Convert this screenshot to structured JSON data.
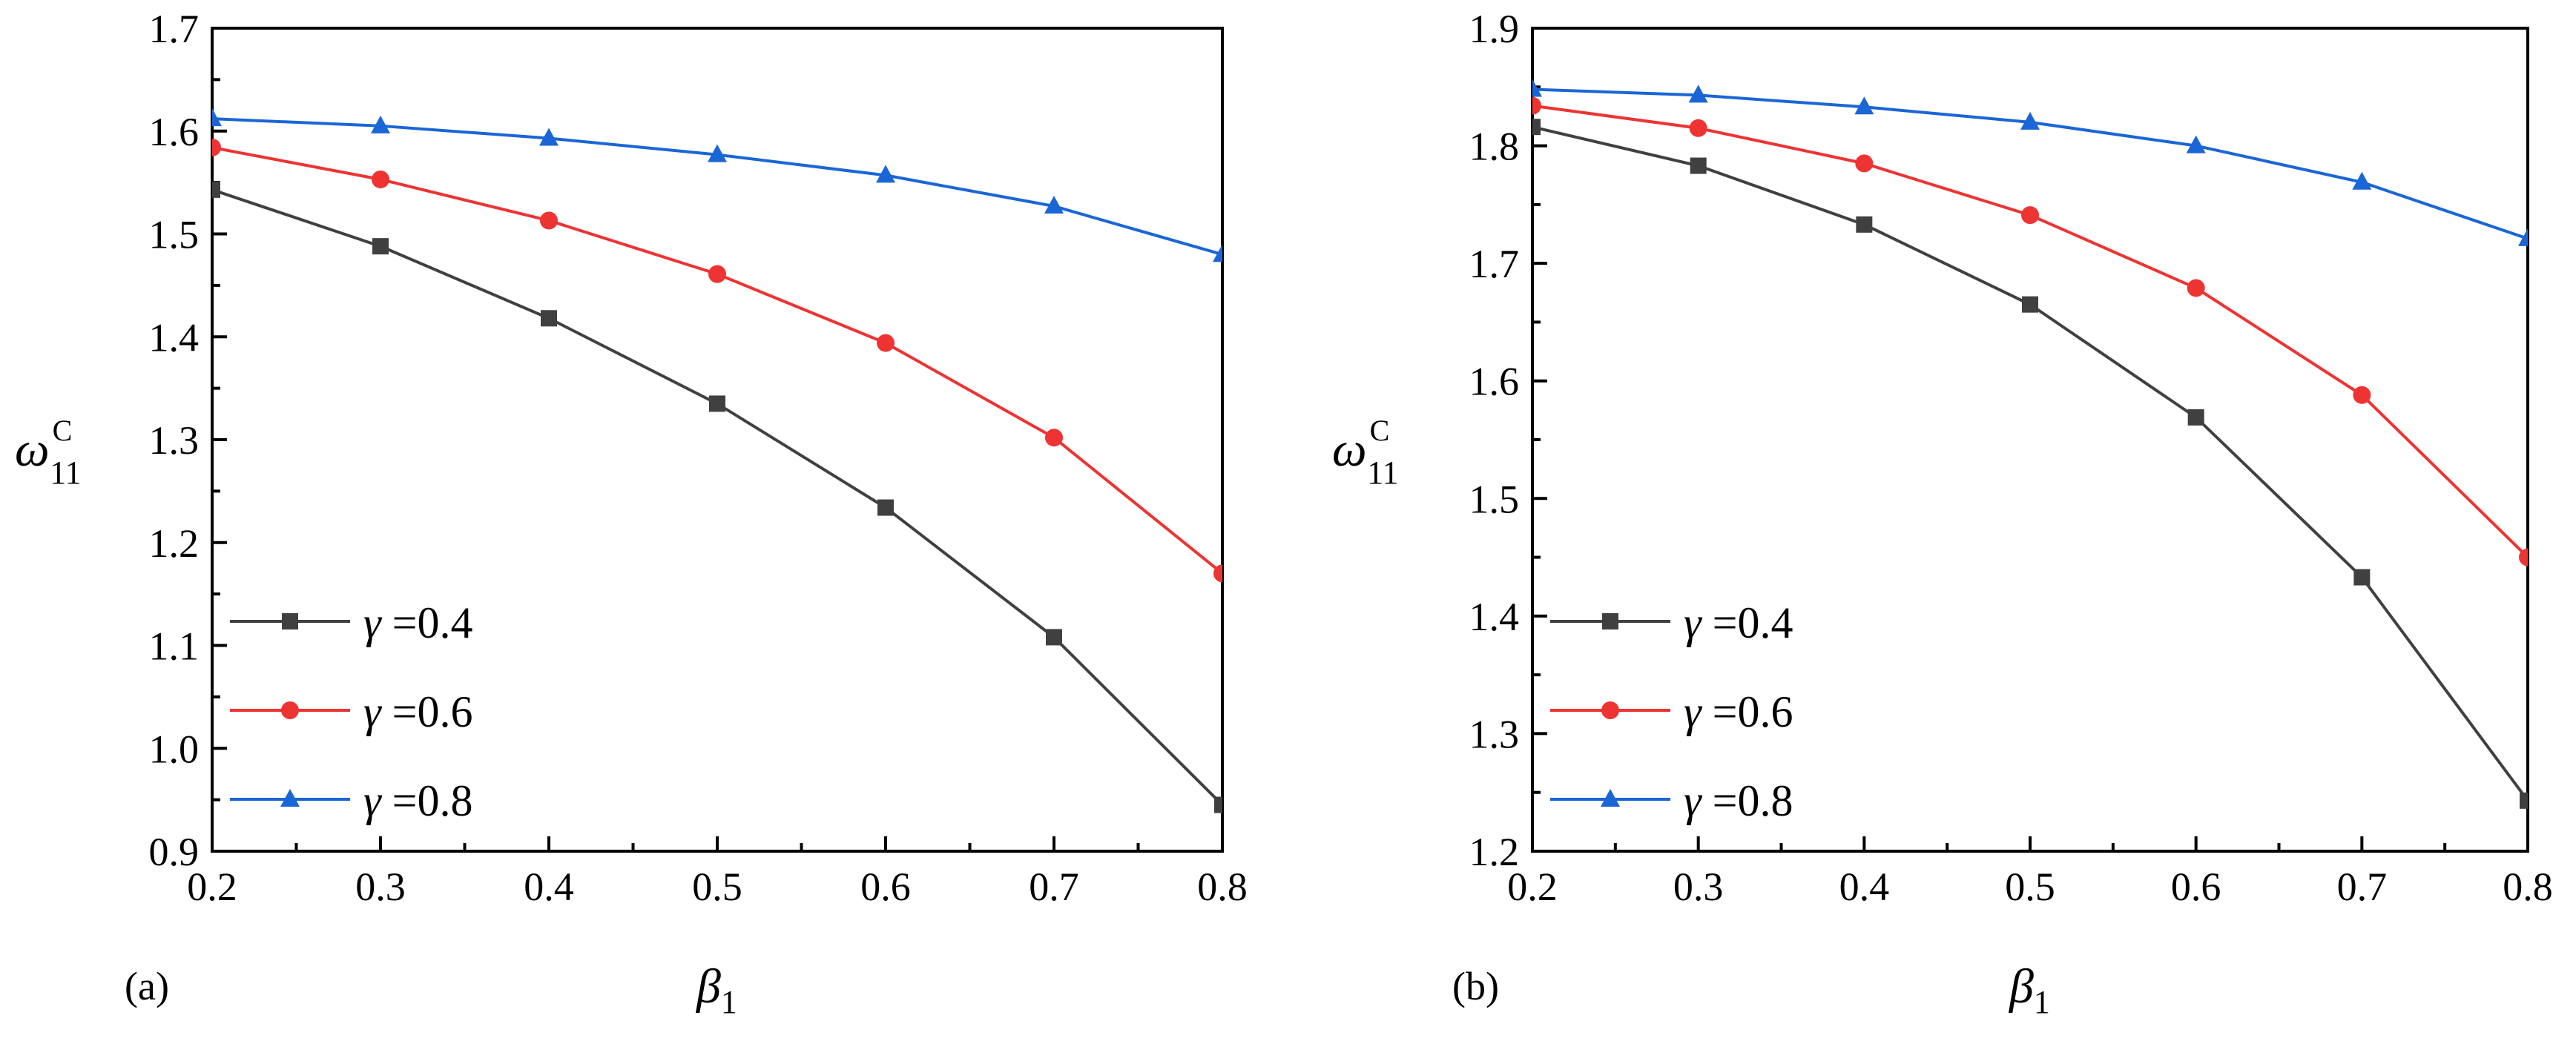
{
  "chart_data": [
    {
      "type": "line",
      "panel_label": "(a)",
      "xlabel": "β",
      "xlabel_sub": "1",
      "ylabel": "ω",
      "ylabel_sub": "11",
      "ylabel_sup": "C",
      "xlim": [
        0.2,
        0.8
      ],
      "ylim": [
        0.9,
        1.7
      ],
      "x_ticks": [
        "0.2",
        "0.3",
        "0.4",
        "0.5",
        "0.6",
        "0.7",
        "0.8"
      ],
      "y_ticks": [
        "0.9",
        "1.0",
        "1.1",
        "1.2",
        "1.3",
        "1.4",
        "1.5",
        "1.6",
        "1.7"
      ],
      "legend_position": "bottom-left",
      "x": [
        0.2,
        0.3,
        0.4,
        0.5,
        0.6,
        0.7,
        0.8
      ],
      "series": [
        {
          "name": "γ =0.4",
          "color": "#404040",
          "marker": "square",
          "values": [
            1.543,
            1.488,
            1.418,
            1.335,
            1.234,
            1.108,
            0.945
          ]
        },
        {
          "name": "γ =0.6",
          "color": "#ee3333",
          "marker": "circle",
          "values": [
            1.584,
            1.553,
            1.513,
            1.461,
            1.394,
            1.302,
            1.17
          ]
        },
        {
          "name": "γ =0.8",
          "color": "#1a66d6",
          "marker": "triangle",
          "values": [
            1.612,
            1.605,
            1.593,
            1.577,
            1.557,
            1.527,
            1.48
          ]
        }
      ]
    },
    {
      "type": "line",
      "panel_label": "(b)",
      "xlabel": "β",
      "xlabel_sub": "1",
      "ylabel": "ω",
      "ylabel_sub": "11",
      "ylabel_sup": "C",
      "xlim": [
        0.2,
        0.8
      ],
      "ylim": [
        1.2,
        1.9
      ],
      "x_ticks": [
        "0.2",
        "0.3",
        "0.4",
        "0.5",
        "0.6",
        "0.7",
        "0.8"
      ],
      "y_ticks": [
        "1.2",
        "1.3",
        "1.4",
        "1.5",
        "1.6",
        "1.7",
        "1.8",
        "1.9"
      ],
      "legend_position": "bottom-left",
      "x": [
        0.2,
        0.3,
        0.4,
        0.5,
        0.6,
        0.7,
        0.8
      ],
      "series": [
        {
          "name": "γ =0.4",
          "color": "#404040",
          "marker": "square",
          "values": [
            1.816,
            1.783,
            1.733,
            1.665,
            1.569,
            1.433,
            1.243
          ]
        },
        {
          "name": "γ =0.6",
          "color": "#ee3333",
          "marker": "circle",
          "values": [
            1.834,
            1.815,
            1.785,
            1.741,
            1.679,
            1.588,
            1.45
          ]
        },
        {
          "name": "γ =0.8",
          "color": "#1a66d6",
          "marker": "triangle",
          "values": [
            1.848,
            1.843,
            1.833,
            1.82,
            1.8,
            1.769,
            1.721
          ]
        }
      ]
    }
  ]
}
